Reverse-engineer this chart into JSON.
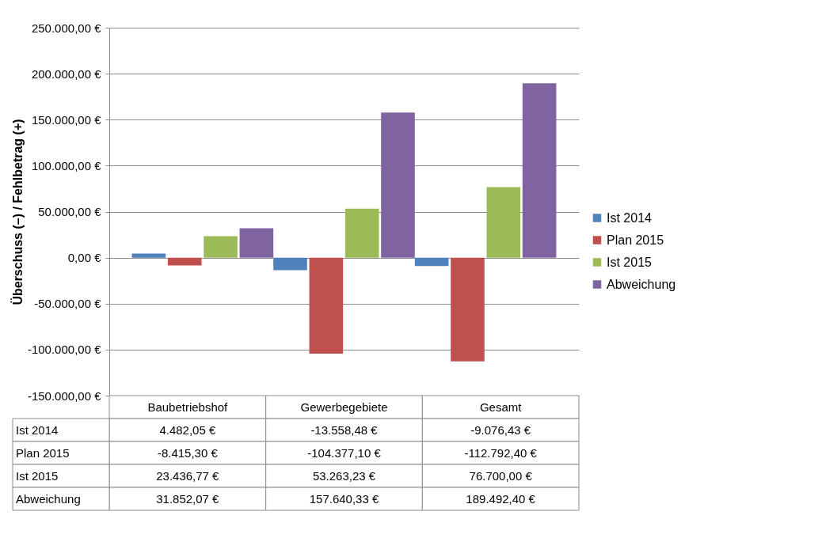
{
  "chart_data": {
    "type": "bar",
    "ylabel": "Überschuss (–) / Fehlbetrag (+)",
    "categories": [
      "Baubetriebshof",
      "Gewerbegebiete",
      "Gesamt"
    ],
    "series": [
      {
        "name": "Ist 2014",
        "color": "#4f81bd",
        "values": [
          4482.05,
          -13558.48,
          -9076.43
        ],
        "value_labels": [
          "4.482,05 €",
          "-13.558,48 €",
          "-9.076,43 €"
        ]
      },
      {
        "name": "Plan 2015",
        "color": "#c0504d",
        "values": [
          -8415.3,
          -104377.1,
          -112792.4
        ],
        "value_labels": [
          "-8.415,30 €",
          "-104.377,10 €",
          "-112.792,40 €"
        ]
      },
      {
        "name": "Ist 2015",
        "color": "#9bbb59",
        "values": [
          23436.77,
          53263.23,
          76700.0
        ],
        "value_labels": [
          "23.436,77 €",
          "53.263,23 €",
          "76.700,00 €"
        ]
      },
      {
        "name": "Abweichung",
        "color": "#8064a2",
        "values": [
          31852.07,
          157640.33,
          189492.4
        ],
        "value_labels": [
          "31.852,07 €",
          "157.640,33 €",
          "189.492,40 €"
        ]
      }
    ],
    "ylim": [
      -150000,
      250000
    ],
    "yticks": [
      {
        "value": -150000,
        "label": "-150.000,00 €"
      },
      {
        "value": -100000,
        "label": "-100.000,00 €"
      },
      {
        "value": -50000,
        "label": "-50.000,00 €"
      },
      {
        "value": 0,
        "label": "0,00 €"
      },
      {
        "value": 50000,
        "label": "50.000,00 €"
      },
      {
        "value": 100000,
        "label": "100.000,00 €"
      },
      {
        "value": 150000,
        "label": "150.000,00 €"
      },
      {
        "value": 200000,
        "label": "200.000,00 €"
      },
      {
        "value": 250000,
        "label": "250.000,00 €"
      }
    ],
    "grid": "y",
    "legend": "right"
  }
}
